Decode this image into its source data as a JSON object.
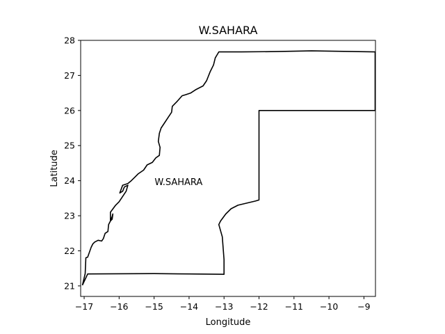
{
  "chart_data": {
    "type": "map",
    "title": "W.SAHARA",
    "xlabel": "Longitude",
    "ylabel": "Latitude",
    "xlim": [
      -17.1,
      -8.67
    ],
    "ylim": [
      20.7,
      28.0
    ],
    "x_ticks": [
      -17,
      -16,
      -15,
      -14,
      -13,
      -12,
      -11,
      -10,
      -9
    ],
    "x_tick_labels": [
      "−17",
      "−16",
      "−15",
      "−14",
      "−13",
      "−12",
      "−11",
      "−10",
      "−9"
    ],
    "y_ticks": [
      21,
      22,
      23,
      24,
      25,
      26,
      27,
      28
    ],
    "y_tick_labels": [
      "21",
      "22",
      "23",
      "24",
      "25",
      "26",
      "27",
      "28"
    ],
    "grid": false,
    "annotations": [
      {
        "text": "W.SAHARA",
        "lon": -14.3,
        "lat": 23.95
      }
    ],
    "boundary": {
      "name": "W.SAHARA",
      "color": "#000000",
      "coordinates": [
        [
          -17.05,
          21.02
        ],
        [
          -16.97,
          21.35
        ],
        [
          -16.95,
          21.8
        ],
        [
          -16.9,
          21.82
        ],
        [
          -16.8,
          22.1
        ],
        [
          -16.75,
          22.2
        ],
        [
          -16.7,
          22.25
        ],
        [
          -16.6,
          22.3
        ],
        [
          -16.5,
          22.28
        ],
        [
          -16.45,
          22.35
        ],
        [
          -16.4,
          22.5
        ],
        [
          -16.32,
          22.55
        ],
        [
          -16.3,
          22.75
        ],
        [
          -16.25,
          22.85
        ],
        [
          -16.2,
          22.98
        ],
        [
          -16.18,
          23.05
        ],
        [
          -16.2,
          22.9
        ],
        [
          -16.25,
          22.85
        ],
        [
          -16.25,
          23.1
        ],
        [
          -16.1,
          23.3
        ],
        [
          -16.0,
          23.4
        ],
        [
          -15.9,
          23.55
        ],
        [
          -15.8,
          23.7
        ],
        [
          -15.75,
          23.87
        ],
        [
          -15.85,
          23.82
        ],
        [
          -15.9,
          23.7
        ],
        [
          -15.98,
          23.65
        ],
        [
          -15.9,
          23.87
        ],
        [
          -15.75,
          23.92
        ],
        [
          -15.65,
          24.0
        ],
        [
          -15.55,
          24.1
        ],
        [
          -15.45,
          24.2
        ],
        [
          -15.3,
          24.3
        ],
        [
          -15.2,
          24.45
        ],
        [
          -15.05,
          24.52
        ],
        [
          -14.95,
          24.65
        ],
        [
          -14.85,
          24.72
        ],
        [
          -14.83,
          24.95
        ],
        [
          -14.88,
          25.12
        ],
        [
          -14.85,
          25.35
        ],
        [
          -14.8,
          25.5
        ],
        [
          -14.7,
          25.65
        ],
        [
          -14.6,
          25.8
        ],
        [
          -14.5,
          25.95
        ],
        [
          -14.48,
          26.12
        ],
        [
          -14.35,
          26.25
        ],
        [
          -14.2,
          26.42
        ],
        [
          -14.1,
          26.45
        ],
        [
          -13.95,
          26.5
        ],
        [
          -13.8,
          26.6
        ],
        [
          -13.6,
          26.7
        ],
        [
          -13.5,
          26.85
        ],
        [
          -13.4,
          27.1
        ],
        [
          -13.3,
          27.3
        ],
        [
          -13.25,
          27.5
        ],
        [
          -13.15,
          27.67
        ],
        [
          -12.5,
          27.67
        ],
        [
          -11.5,
          27.68
        ],
        [
          -10.5,
          27.7
        ],
        [
          -8.68,
          27.67
        ],
        [
          -8.68,
          26.0
        ],
        [
          -12.0,
          26.0
        ],
        [
          -12.0,
          23.45
        ],
        [
          -12.1,
          23.42
        ],
        [
          -12.6,
          23.3
        ],
        [
          -12.8,
          23.2
        ],
        [
          -12.95,
          23.05
        ],
        [
          -13.1,
          22.85
        ],
        [
          -13.15,
          22.75
        ],
        [
          -13.05,
          22.4
        ],
        [
          -13.0,
          21.75
        ],
        [
          -13.0,
          21.33
        ],
        [
          -14.0,
          21.34
        ],
        [
          -15.0,
          21.35
        ],
        [
          -16.9,
          21.34
        ],
        [
          -17.05,
          21.02
        ]
      ]
    }
  }
}
